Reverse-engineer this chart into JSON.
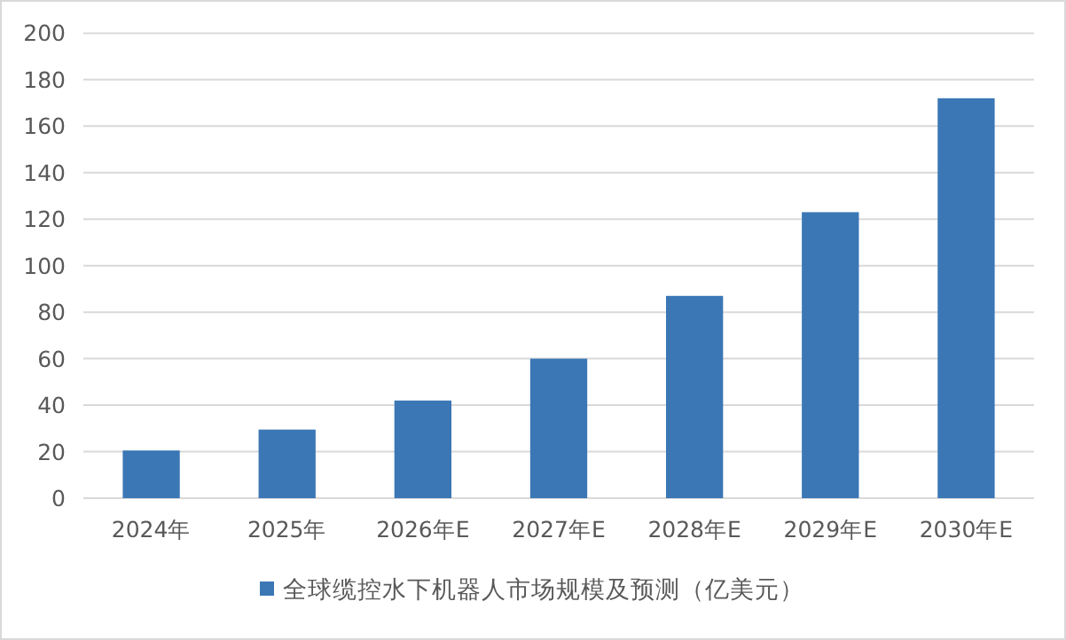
{
  "chart_data": {
    "type": "bar",
    "categories": [
      "2024年",
      "2025年",
      "2026年E",
      "2027年E",
      "2028年E",
      "2029年E",
      "2030年E"
    ],
    "series": [
      {
        "name": "全球缆控水下机器人市场规模及预测（亿美元）",
        "color": "#3b77b5",
        "values": [
          20.5,
          29.5,
          42,
          60,
          87,
          123,
          172
        ]
      }
    ],
    "ylim": [
      0,
      200
    ],
    "yticks": [
      0,
      20,
      40,
      60,
      80,
      100,
      120,
      140,
      160,
      180,
      200
    ],
    "grid": "y",
    "legend": "bottom"
  }
}
